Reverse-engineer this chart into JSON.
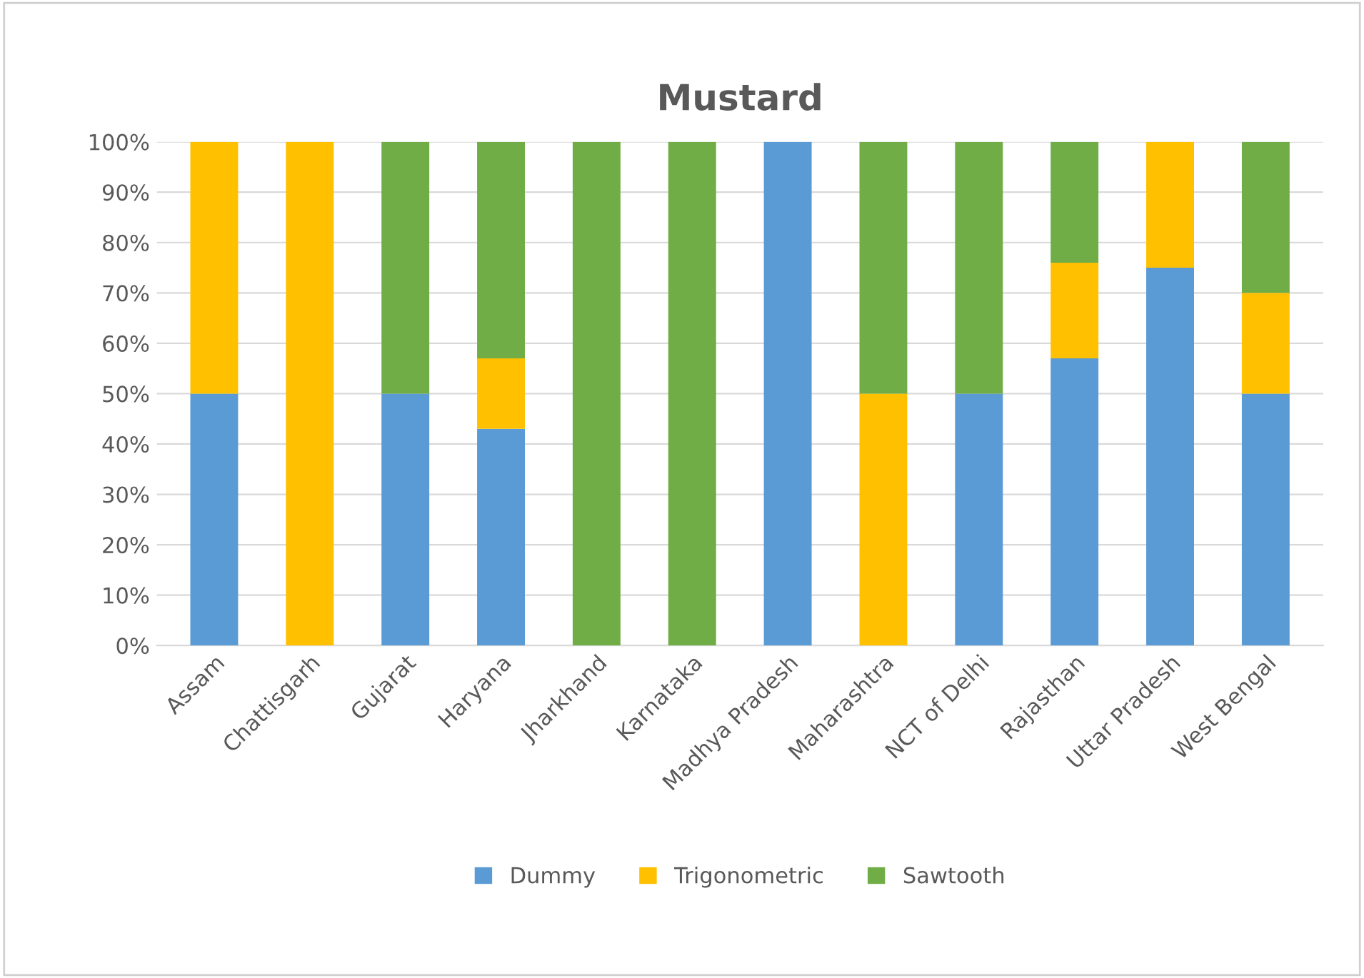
{
  "chart_data": {
    "type": "bar",
    "title": "Mustard",
    "stacked": true,
    "categories": [
      "Assam",
      "Chattisgarh",
      "Gujarat",
      "Haryana",
      "Jharkhand",
      "Karnataka",
      "Madhya Pradesh",
      "Maharashtra",
      "NCT of Delhi",
      "Rajasthan",
      "Uttar Pradesh",
      "West Bengal"
    ],
    "series": [
      {
        "name": "Dummy",
        "color": "#5b9bd5",
        "values": [
          50,
          0,
          50,
          43,
          0,
          0,
          100,
          0,
          50,
          57,
          75,
          50
        ]
      },
      {
        "name": "Trigonometric",
        "color": "#ffc000",
        "values": [
          50,
          100,
          0,
          14,
          0,
          0,
          0,
          50,
          0,
          19,
          25,
          20
        ]
      },
      {
        "name": "Sawtooth",
        "color": "#70ad47",
        "values": [
          0,
          0,
          50,
          43,
          100,
          100,
          0,
          50,
          50,
          24,
          0,
          30
        ]
      }
    ],
    "ylim": [
      0,
      100
    ],
    "yticks": [
      {
        "value": 0,
        "label": "0%"
      },
      {
        "value": 10,
        "label": "10%"
      },
      {
        "value": 20,
        "label": "20%"
      },
      {
        "value": 30,
        "label": "30%"
      },
      {
        "value": 40,
        "label": "40%"
      },
      {
        "value": 50,
        "label": "50%"
      },
      {
        "value": 60,
        "label": "60%"
      },
      {
        "value": 70,
        "label": "70%"
      },
      {
        "value": 80,
        "label": "80%"
      },
      {
        "value": 90,
        "label": "90%"
      },
      {
        "value": 100,
        "label": "100%"
      }
    ],
    "grid": "y",
    "legend": "bottom"
  }
}
